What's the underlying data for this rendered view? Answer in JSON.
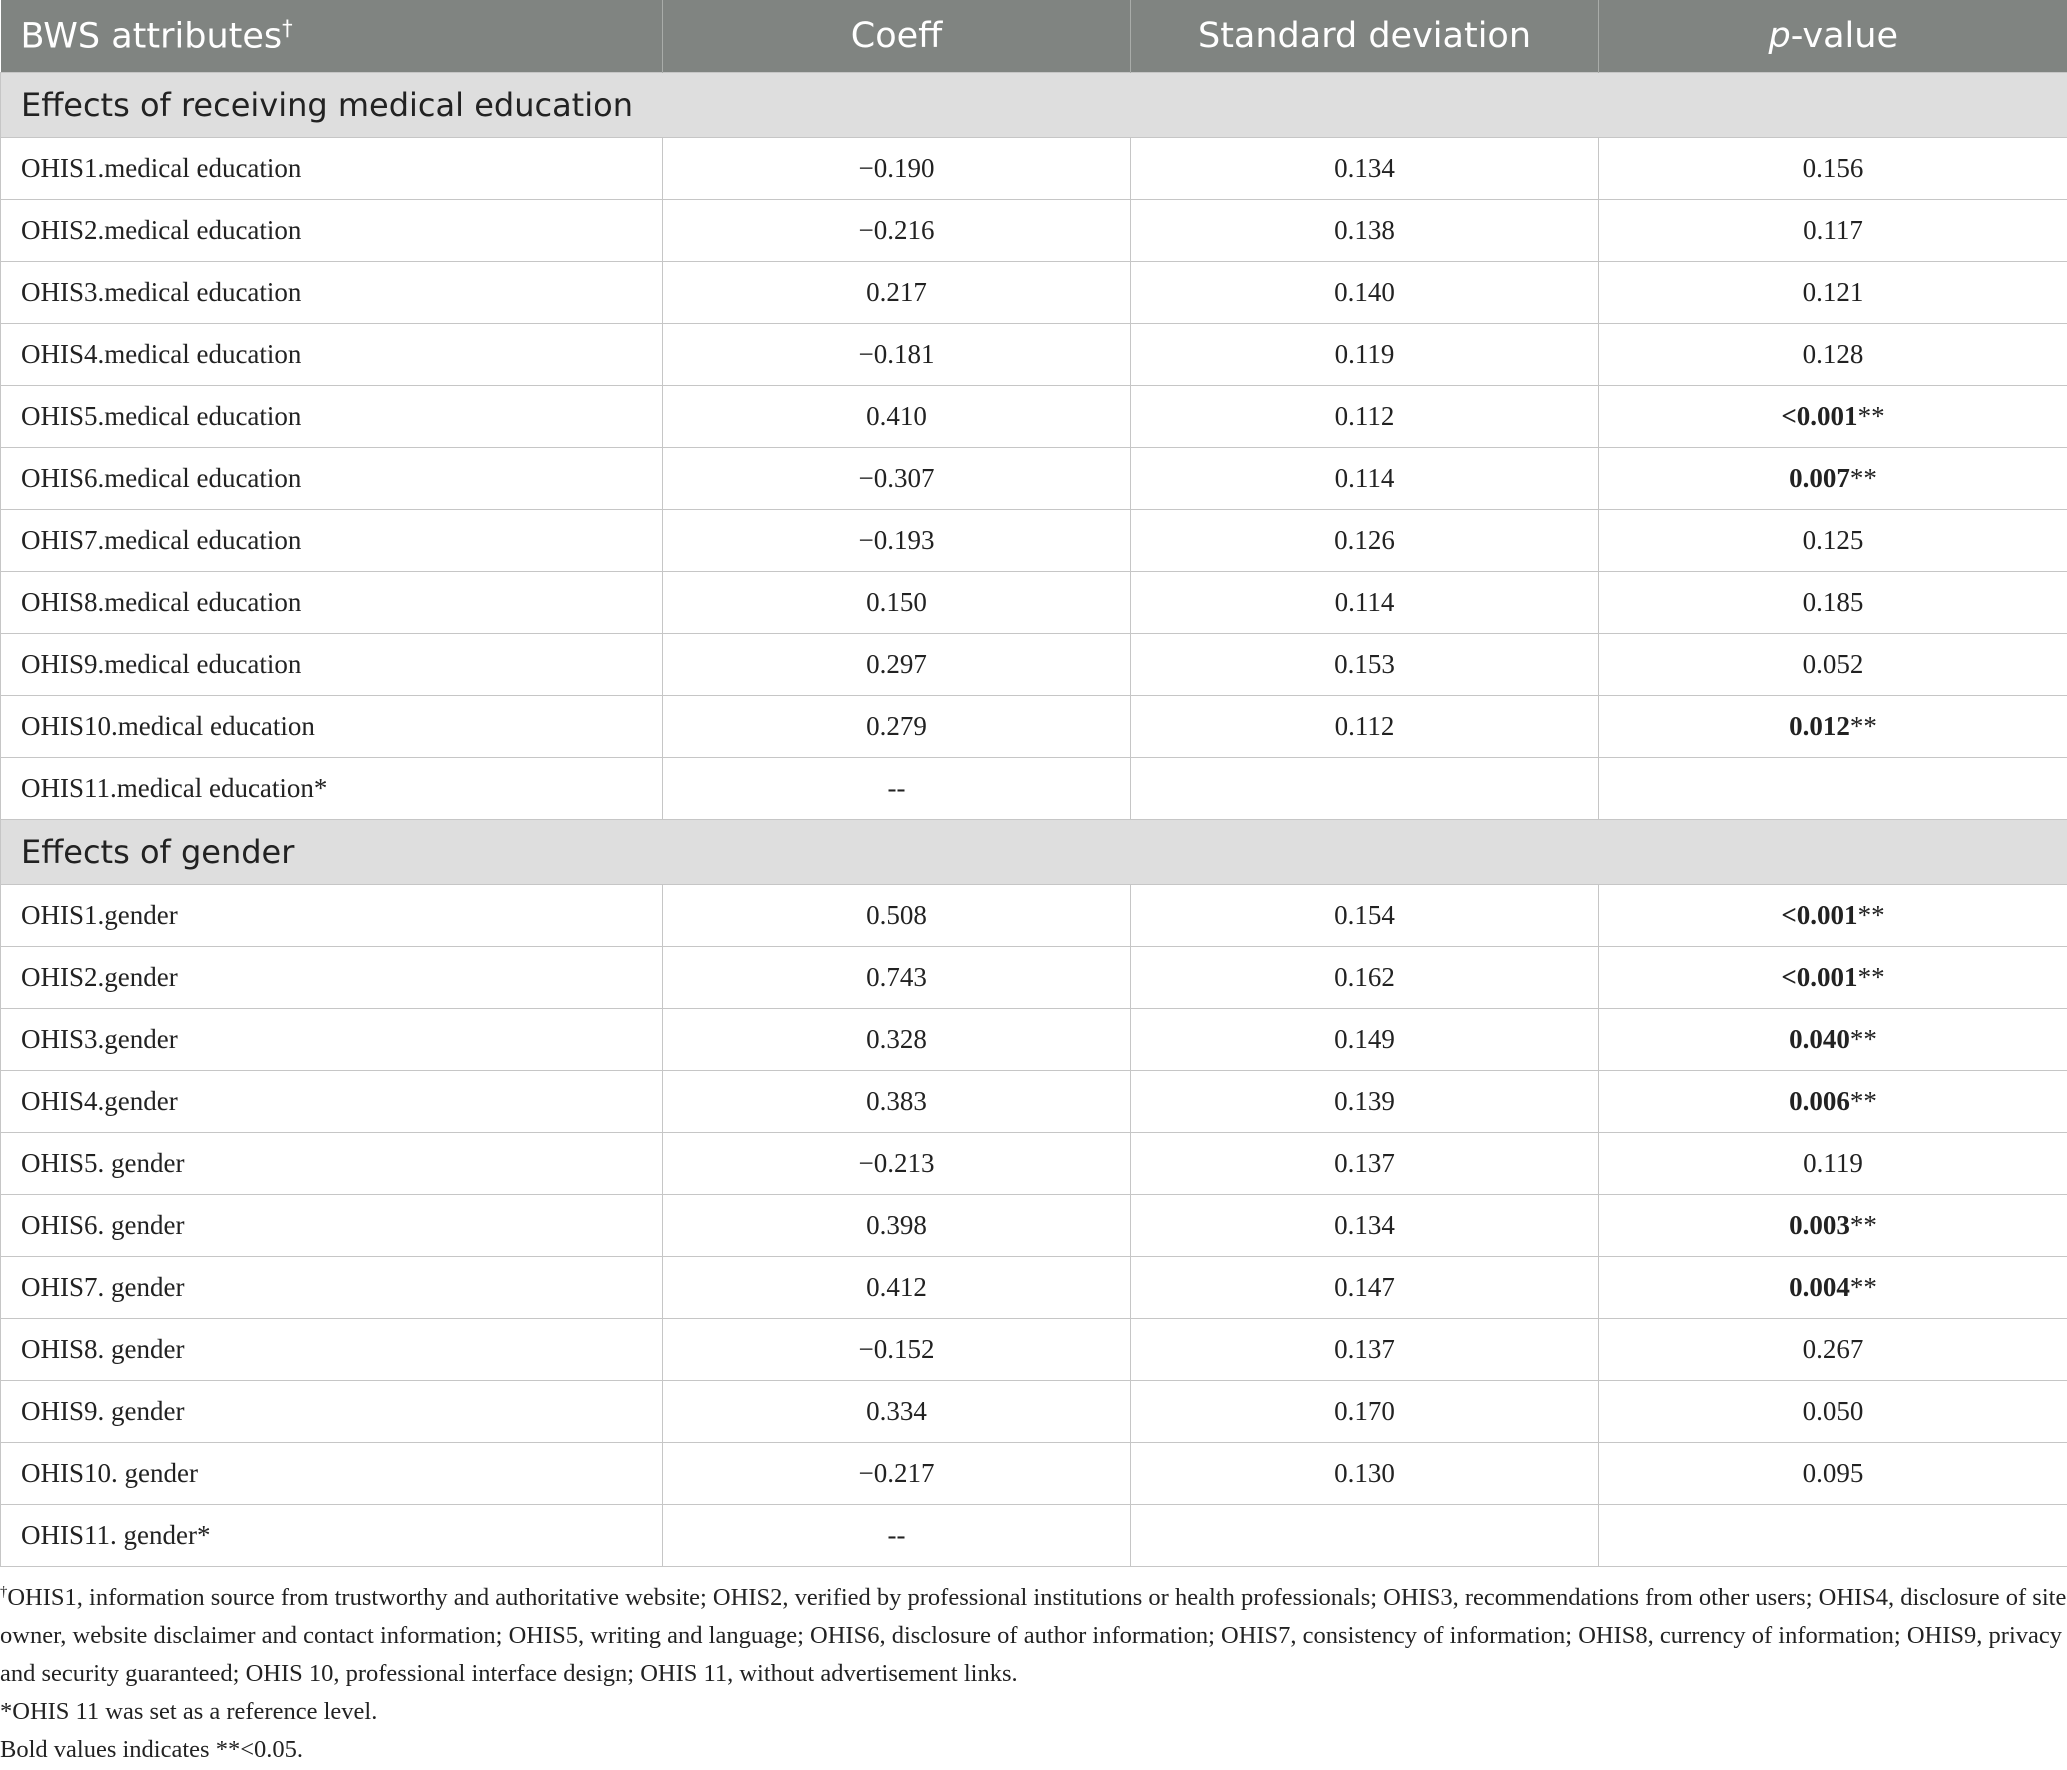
{
  "header": {
    "columns": [
      {
        "text": "BWS attributes",
        "sup": "†"
      },
      {
        "text": "Coeff"
      },
      {
        "text": "Standard deviation"
      },
      {
        "italic": "p",
        "text": "-value"
      }
    ]
  },
  "sections": [
    {
      "title": "Effects of receiving medical education",
      "rows": [
        {
          "attribute": "OHIS1.medical education",
          "coeff": "−0.190",
          "sd": "0.134",
          "p": "0.156"
        },
        {
          "attribute": "OHIS2.medical education",
          "coeff": "−0.216",
          "sd": "0.138",
          "p": "0.117"
        },
        {
          "attribute": "OHIS3.medical education",
          "coeff": "0.217",
          "sd": "0.140",
          "p": "0.121"
        },
        {
          "attribute": "OHIS4.medical education",
          "coeff": "−0.181",
          "sd": "0.119",
          "p": "0.128"
        },
        {
          "attribute": "OHIS5.medical education",
          "coeff": "0.410",
          "sd": "0.112",
          "p": "<0.001",
          "sig": "**",
          "bold": true
        },
        {
          "attribute": "OHIS6.medical education",
          "coeff": "−0.307",
          "sd": "0.114",
          "p": "0.007",
          "sig": "**",
          "bold": true
        },
        {
          "attribute": "OHIS7.medical education",
          "coeff": "−0.193",
          "sd": "0.126",
          "p": "0.125"
        },
        {
          "attribute": "OHIS8.medical education",
          "coeff": "0.150",
          "sd": "0.114",
          "p": "0.185"
        },
        {
          "attribute": "OHIS9.medical education",
          "coeff": "0.297",
          "sd": "0.153",
          "p": "0.052"
        },
        {
          "attribute": "OHIS10.medical education",
          "coeff": "0.279",
          "sd": "0.112",
          "p": "0.012",
          "sig": "**",
          "bold": true
        },
        {
          "attribute": "OHIS11.medical education*",
          "coeff": "--"
        }
      ]
    },
    {
      "title": "Effects of gender",
      "rows": [
        {
          "attribute": "OHIS1.gender",
          "coeff": "0.508",
          "sd": "0.154",
          "p": "<0.001",
          "sig": "**",
          "bold": true
        },
        {
          "attribute": "OHIS2.gender",
          "coeff": "0.743",
          "sd": "0.162",
          "p": "<0.001",
          "sig": "**",
          "bold": true
        },
        {
          "attribute": "OHIS3.gender",
          "coeff": "0.328",
          "sd": "0.149",
          "p": "0.040",
          "sig": "**",
          "bold": true
        },
        {
          "attribute": "OHIS4.gender",
          "coeff": "0.383",
          "sd": "0.139",
          "p": "0.006",
          "sig": "**",
          "bold": true
        },
        {
          "attribute": "OHIS5. gender",
          "coeff": "−0.213",
          "sd": "0.137",
          "p": "0.119"
        },
        {
          "attribute": "OHIS6. gender",
          "coeff": "0.398",
          "sd": "0.134",
          "p": "0.003",
          "sig": "**",
          "bold": true
        },
        {
          "attribute": "OHIS7. gender",
          "coeff": "0.412",
          "sd": "0.147",
          "p": "0.004",
          "sig": "**",
          "bold": true
        },
        {
          "attribute": "OHIS8. gender",
          "coeff": "−0.152",
          "sd": "0.137",
          "p": "0.267"
        },
        {
          "attribute": "OHIS9. gender",
          "coeff": "0.334",
          "sd": "0.170",
          "p": "0.050"
        },
        {
          "attribute": "OHIS10. gender",
          "coeff": "−0.217",
          "sd": "0.130",
          "p": "0.095"
        },
        {
          "attribute": "OHIS11. gender*",
          "coeff": "--"
        }
      ]
    }
  ],
  "footnotes": [
    {
      "sup": "†",
      "text": "OHIS1, information source from trustworthy and authoritative website; OHIS2, verified by professional institutions or health professionals; OHIS3, recommendations from other users; OHIS4, disclosure of site owner, website disclaimer and contact information; OHIS5, writing and language; OHIS6, disclosure of author information; OHIS7, consistency of information; OHIS8, currency of information; OHIS9, privacy and security guaranteed; OHIS 10, professional interface design; OHIS 11, without advertisement links."
    },
    {
      "text": "*OHIS 11 was set as a reference level."
    },
    {
      "text": "Bold values indicates **<0.05."
    }
  ]
}
